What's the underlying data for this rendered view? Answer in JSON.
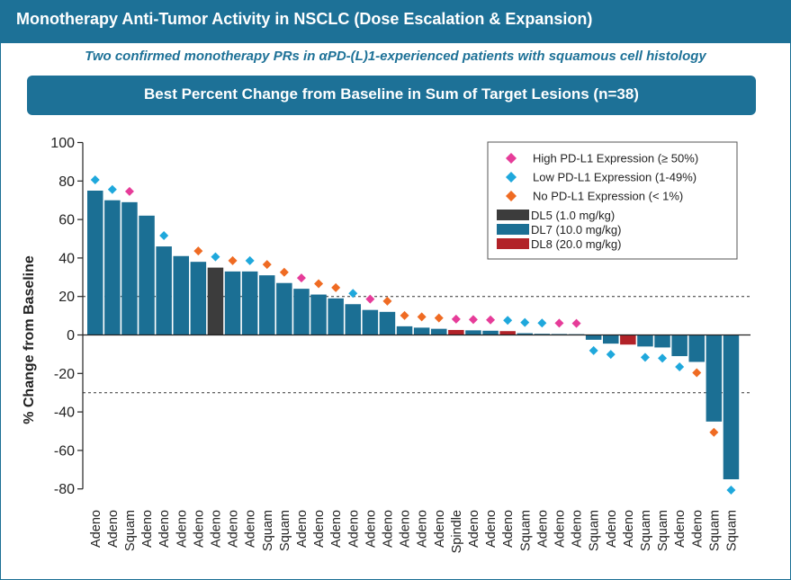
{
  "header": {
    "title": "Monotherapy Anti-Tumor Activity in NSCLC (Dose Escalation & Expansion)",
    "subtitle": "Two confirmed monotherapy PRs in αPD-(L)1-experienced patients with squamous cell histology"
  },
  "colors": {
    "brand": "#1d7197",
    "high": "#e63c99",
    "low": "#1fa8dc",
    "none": "#ef6b23",
    "dl5": "#3c3c3c",
    "dl7": "#1b6f94",
    "dl8": "#b22228"
  },
  "chart_data": {
    "type": "bar",
    "title": "Best Percent Change from Baseline in Sum of Target Lesions (n=38)",
    "ylabel": "% Change from Baseline",
    "xlabel": "",
    "ylim": [
      -85,
      102
    ],
    "yticks": [
      100,
      80,
      60,
      40,
      20,
      0,
      -20,
      -40,
      -60,
      -80
    ],
    "reference_lines": [
      20,
      -30
    ],
    "categories": [
      "Adeno",
      "Adeno",
      "Squam",
      "Adeno",
      "Adeno",
      "Adeno",
      "Adeno",
      "Adeno",
      "Adeno",
      "Adeno",
      "Squam",
      "Squam",
      "Adeno",
      "Adeno",
      "Adeno",
      "Adeno",
      "Adeno",
      "Adeno",
      "Adeno",
      "Adeno",
      "Adeno",
      "Spindle",
      "Adeno",
      "Adeno",
      "Adeno",
      "Squam",
      "Adeno",
      "Adeno",
      "Adeno",
      "Squam",
      "Adeno",
      "Adeno",
      "Squam",
      "Squam",
      "Adeno",
      "Adeno",
      "Squam",
      "Squam"
    ],
    "values": [
      75,
      70,
      69,
      62,
      46,
      41,
      38,
      35,
      33,
      33,
      31,
      27,
      24,
      21,
      19,
      16,
      13,
      12,
      4.5,
      3.8,
      3.2,
      2.6,
      2.4,
      2.2,
      2.0,
      0.9,
      0.6,
      0.5,
      0.4,
      -2.5,
      -4.5,
      -5,
      -6,
      -6.5,
      -11,
      -14,
      -45,
      -75
    ],
    "dose": [
      "DL7",
      "DL7",
      "DL7",
      "DL7",
      "DL7",
      "DL7",
      "DL7",
      "DL5",
      "DL7",
      "DL7",
      "DL7",
      "DL7",
      "DL7",
      "DL7",
      "DL7",
      "DL7",
      "DL7",
      "DL7",
      "DL7",
      "DL7",
      "DL7",
      "DL8",
      "DL7",
      "DL7",
      "DL8",
      "DL7",
      "DL7",
      "DL7",
      "DL7",
      "DL7",
      "DL7",
      "DL8",
      "DL7",
      "DL7",
      "DL7",
      "DL7",
      "DL7",
      "DL7"
    ],
    "pdl1": [
      "Low",
      "Low",
      "High",
      "",
      "Low",
      "",
      "No",
      "Low",
      "No",
      "Low",
      "No",
      "No",
      "High",
      "No",
      "No",
      "Low",
      "High",
      "No",
      "No",
      "No",
      "No",
      "High",
      "High",
      "High",
      "Low",
      "Low",
      "Low",
      "High",
      "High",
      "Low",
      "Low",
      "",
      "Low",
      "Low",
      "Low",
      "No",
      "No",
      "Low"
    ],
    "legend": {
      "position": "top-right",
      "markers": [
        {
          "key": "High",
          "label": "High PD-L1 Expression (≥ 50%)"
        },
        {
          "key": "Low",
          "label": "Low PD-L1 Expression (1-49%)"
        },
        {
          "key": "No",
          "label": "No PD-L1 Expression (< 1%)"
        }
      ],
      "doses": [
        {
          "key": "DL5",
          "label": "DL5 (1.0 mg/kg)"
        },
        {
          "key": "DL7",
          "label": "DL7 (10.0 mg/kg)"
        },
        {
          "key": "DL8",
          "label": "DL8 (20.0 mg/kg)"
        }
      ]
    }
  }
}
